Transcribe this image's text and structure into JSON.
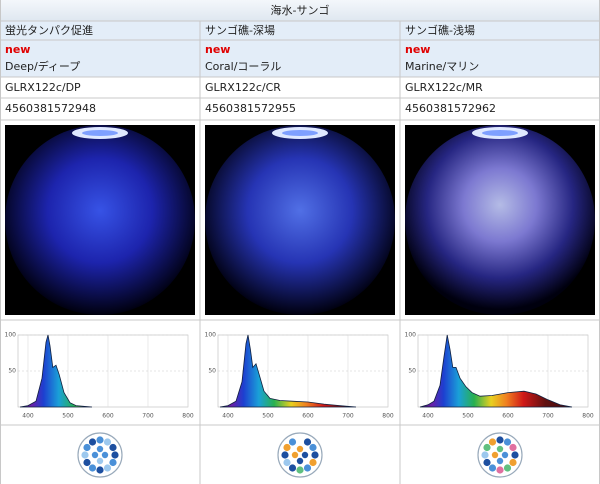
{
  "header": {
    "title": "海水-サンゴ"
  },
  "columns": [
    {
      "category": "蛍光タンパク促進",
      "badge": "new",
      "name": "Deep/ディープ",
      "model": "GLRX122c/DP",
      "jan": "4560381572948",
      "spectrum": {
        "x": [
          380,
          400,
          420,
          435,
          445,
          450,
          455,
          462,
          470,
          478,
          490,
          505,
          520,
          560
        ],
        "y": [
          0,
          2,
          8,
          40,
          90,
          100,
          85,
          55,
          58,
          45,
          20,
          6,
          2,
          0
        ]
      }
    },
    {
      "category": "サンゴ礁-深場",
      "badge": "new",
      "name": "Coral/コーラル",
      "model": "GLRX122c/CR",
      "jan": "4560381572955",
      "spectrum": {
        "x": [
          380,
          400,
          420,
          435,
          445,
          450,
          456,
          462,
          470,
          478,
          490,
          505,
          530,
          560,
          600,
          640,
          680,
          720
        ],
        "y": [
          0,
          2,
          8,
          35,
          88,
          100,
          80,
          55,
          60,
          45,
          22,
          12,
          9,
          8,
          7,
          4,
          2,
          0
        ]
      }
    },
    {
      "category": "サンゴ礁-浅場",
      "badge": "new",
      "name": "Marine/マリン",
      "model": "GLRX122c/MR",
      "jan": "4560381572962",
      "spectrum": {
        "x": [
          380,
          400,
          415,
          430,
          440,
          448,
          455,
          462,
          470,
          480,
          495,
          510,
          530,
          560,
          600,
          640,
          670,
          700,
          730,
          760
        ],
        "y": [
          0,
          3,
          8,
          30,
          70,
          100,
          80,
          55,
          55,
          40,
          28,
          20,
          15,
          16,
          20,
          22,
          18,
          10,
          3,
          0
        ]
      }
    }
  ],
  "spectrum_axis": {
    "xlim": [
      375,
      800
    ],
    "ylim": [
      0,
      100
    ],
    "xticks": [
      400,
      500,
      600,
      700,
      800
    ],
    "yticks": [
      50,
      100
    ]
  }
}
